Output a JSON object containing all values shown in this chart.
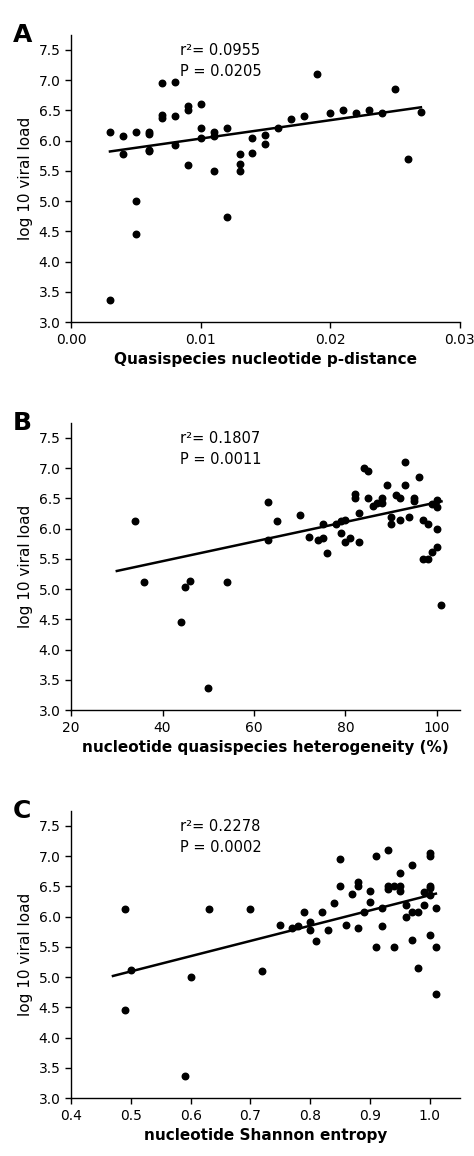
{
  "panel_A": {
    "label": "A",
    "r2": "0.0955",
    "P": "0.0205",
    "xlabel": "Quasispecies nucleotide p-distance",
    "ylabel": "log 10 viral load",
    "xlim": [
      0.0,
      0.03
    ],
    "ylim": [
      3.0,
      7.75
    ],
    "xticks": [
      0.0,
      0.01,
      0.02,
      0.03
    ],
    "yticks": [
      3.0,
      3.5,
      4.0,
      4.5,
      5.0,
      5.5,
      6.0,
      6.5,
      7.0,
      7.5
    ],
    "x": [
      0.003,
      0.003,
      0.004,
      0.004,
      0.005,
      0.005,
      0.005,
      0.006,
      0.006,
      0.006,
      0.006,
      0.007,
      0.007,
      0.007,
      0.008,
      0.008,
      0.008,
      0.009,
      0.009,
      0.009,
      0.01,
      0.01,
      0.01,
      0.011,
      0.011,
      0.011,
      0.012,
      0.012,
      0.013,
      0.013,
      0.013,
      0.014,
      0.014,
      0.015,
      0.015,
      0.016,
      0.017,
      0.018,
      0.019,
      0.02,
      0.021,
      0.022,
      0.023,
      0.024,
      0.025,
      0.026,
      0.027
    ],
    "y": [
      3.37,
      6.14,
      6.08,
      5.78,
      5.0,
      4.45,
      6.15,
      5.82,
      5.85,
      6.11,
      6.15,
      6.38,
      6.42,
      6.95,
      6.96,
      6.41,
      5.92,
      6.5,
      6.57,
      5.6,
      6.6,
      6.05,
      6.2,
      5.5,
      6.08,
      6.15,
      6.2,
      4.73,
      5.5,
      5.62,
      5.78,
      6.05,
      5.8,
      5.95,
      6.1,
      6.2,
      6.35,
      6.4,
      7.1,
      6.45,
      6.5,
      6.45,
      6.5,
      6.45,
      6.85,
      5.7,
      6.48
    ],
    "fit_x": [
      0.003,
      0.027
    ],
    "fit_y": [
      5.82,
      6.55
    ]
  },
  "panel_B": {
    "label": "B",
    "r2": "0.1807",
    "P": "0.0011",
    "xlabel": "nucleotide quasispecies heterogeneity (%)",
    "ylabel": "log 10 viral load",
    "xlim": [
      20,
      105
    ],
    "ylim": [
      3.0,
      7.75
    ],
    "xticks": [
      20,
      40,
      60,
      80,
      100
    ],
    "yticks": [
      3.0,
      3.5,
      4.0,
      4.5,
      5.0,
      5.5,
      6.0,
      6.5,
      7.0,
      7.5
    ],
    "x": [
      34,
      36,
      44,
      45,
      46,
      50,
      54,
      63,
      63,
      65,
      70,
      72,
      74,
      75,
      75,
      76,
      78,
      79,
      79,
      80,
      80,
      81,
      82,
      82,
      83,
      83,
      84,
      85,
      85,
      86,
      87,
      88,
      88,
      89,
      90,
      90,
      91,
      92,
      92,
      93,
      93,
      94,
      95,
      95,
      96,
      97,
      97,
      98,
      98,
      99,
      99,
      100,
      100,
      100,
      100,
      101
    ],
    "y": [
      6.12,
      5.12,
      4.46,
      5.04,
      5.13,
      3.37,
      5.12,
      6.44,
      5.82,
      6.12,
      6.22,
      5.86,
      5.82,
      5.85,
      6.08,
      5.6,
      6.08,
      5.92,
      6.12,
      5.78,
      6.15,
      5.85,
      6.5,
      6.57,
      5.78,
      6.25,
      7.0,
      6.5,
      6.96,
      6.38,
      6.42,
      6.5,
      6.42,
      6.72,
      6.08,
      6.2,
      6.55,
      6.5,
      6.15,
      6.72,
      7.1,
      6.2,
      6.5,
      6.45,
      6.85,
      5.5,
      6.15,
      5.5,
      6.08,
      5.62,
      6.4,
      5.7,
      6.0,
      6.48,
      6.35,
      4.73
    ],
    "fit_x": [
      30,
      101
    ],
    "fit_y": [
      5.3,
      6.45
    ]
  },
  "panel_C": {
    "label": "C",
    "r2": "0.2278",
    "P": "0.0002",
    "xlabel": "nucleotide Shannon entropy",
    "ylabel": "log 10 viral load",
    "xlim": [
      0.4,
      1.05
    ],
    "ylim": [
      3.0,
      7.75
    ],
    "xticks": [
      0.4,
      0.5,
      0.6,
      0.7,
      0.8,
      0.9,
      1.0
    ],
    "yticks": [
      3.0,
      3.5,
      4.0,
      4.5,
      5.0,
      5.5,
      6.0,
      6.5,
      7.0,
      7.5
    ],
    "x": [
      0.49,
      0.49,
      0.5,
      0.59,
      0.6,
      0.63,
      0.7,
      0.72,
      0.75,
      0.77,
      0.78,
      0.79,
      0.8,
      0.8,
      0.81,
      0.82,
      0.83,
      0.84,
      0.85,
      0.85,
      0.86,
      0.87,
      0.88,
      0.88,
      0.88,
      0.89,
      0.9,
      0.9,
      0.91,
      0.91,
      0.92,
      0.92,
      0.93,
      0.93,
      0.93,
      0.94,
      0.94,
      0.95,
      0.95,
      0.95,
      0.96,
      0.96,
      0.97,
      0.97,
      0.97,
      0.98,
      0.98,
      0.99,
      0.99,
      1.0,
      1.0,
      1.0,
      1.0,
      1.0,
      1.0,
      1.01,
      1.01,
      1.01
    ],
    "y": [
      6.12,
      4.45,
      5.12,
      3.37,
      5.0,
      6.12,
      6.12,
      5.1,
      5.86,
      5.82,
      5.85,
      6.08,
      5.78,
      5.92,
      5.6,
      6.08,
      5.78,
      6.22,
      6.5,
      6.96,
      5.86,
      6.38,
      5.82,
      6.5,
      6.57,
      6.08,
      6.25,
      6.42,
      7.0,
      5.5,
      5.85,
      6.15,
      7.1,
      6.5,
      6.45,
      6.5,
      5.5,
      6.42,
      6.5,
      6.72,
      6.2,
      6.0,
      6.08,
      5.62,
      6.85,
      6.08,
      5.15,
      6.2,
      6.4,
      7.05,
      7.0,
      6.48,
      6.5,
      6.35,
      5.7,
      5.5,
      6.15,
      4.73
    ],
    "fit_x": [
      0.47,
      1.01
    ],
    "fit_y": [
      5.02,
      6.38
    ]
  },
  "dot_color": "#000000",
  "dot_size": 22,
  "line_color": "#000000",
  "line_width": 1.8,
  "background_color": "#ffffff",
  "font_size_annot": 10.5,
  "font_size_tick": 10,
  "font_size_axis": 11,
  "panel_label_size": 18
}
